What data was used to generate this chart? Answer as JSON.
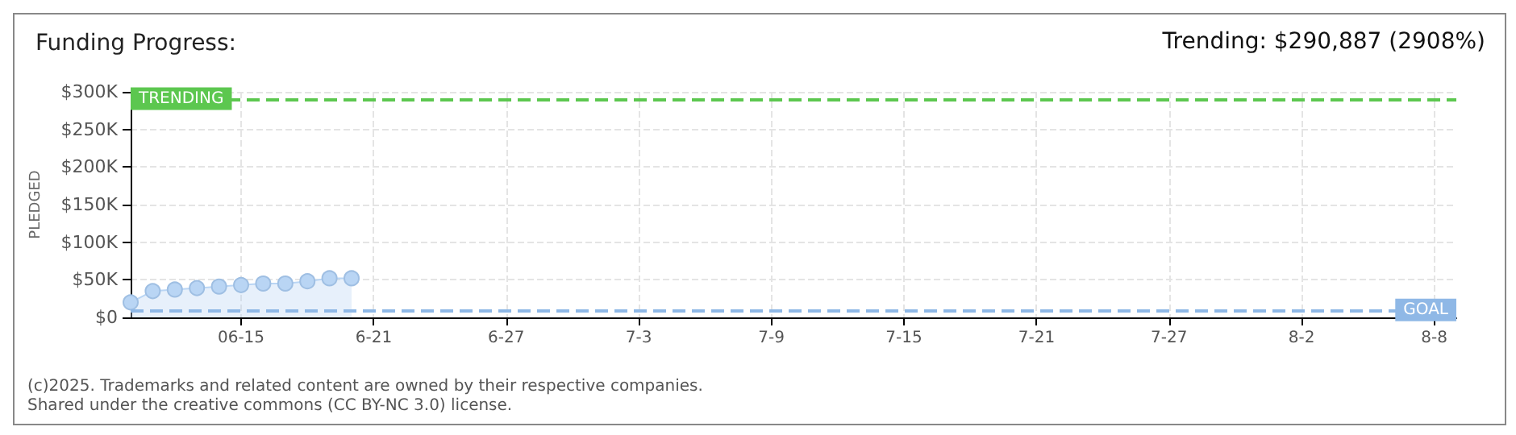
{
  "chart_data": {
    "type": "area",
    "title": "Funding Progress:",
    "ylabel": "PLEDGED",
    "annotations": [
      "Trending: $290,887 (2908%)",
      "(c)2025. Trademarks and related content are owned by their respective companies.",
      "Shared under the creative commons (CC BY-NC 3.0) license."
    ],
    "x": [
      "--06-10",
      "--06-11",
      "--06-12",
      "--06-13",
      "--06-14",
      "--06-15",
      "--06-16",
      "--06-17",
      "--06-18",
      "--06-19",
      "--06-20"
    ],
    "series": [
      {
        "color": "#b9d5f4",
        "values": [
          20000,
          35000,
          37000,
          39000,
          41000,
          43000,
          45000,
          45000,
          48000,
          52000,
          52000
        ]
      }
    ],
    "xlim": [
      "--06-10",
      "--08-09"
    ],
    "xticks": [
      {
        "value": "--06-15",
        "label": "06-15"
      },
      {
        "value": "--06-21",
        "label": "6-21"
      },
      {
        "value": "--06-27",
        "label": "6-27"
      },
      {
        "value": "--07-03",
        "label": "7-3"
      },
      {
        "value": "--07-09",
        "label": "7-9"
      },
      {
        "value": "--07-15",
        "label": "7-15"
      },
      {
        "value": "--07-21",
        "label": "7-21"
      },
      {
        "value": "--07-27",
        "label": "7-27"
      },
      {
        "value": "--08-02",
        "label": "8-2"
      },
      {
        "value": "--08-08",
        "label": "8-8"
      }
    ],
    "ylim": [
      0,
      300000
    ],
    "yticks": [
      {
        "value": 0,
        "label": "$0"
      },
      {
        "value": 50000,
        "label": "$50K"
      },
      {
        "value": 100000,
        "label": "$100K"
      },
      {
        "value": 150000,
        "label": "$150K"
      },
      {
        "value": 200000,
        "label": "$200K"
      },
      {
        "value": 250000,
        "label": "$250K"
      },
      {
        "value": 300000,
        "label": "$300K"
      }
    ],
    "ref_lines": [
      {
        "axis": "y",
        "value": 290887,
        "label": "TRENDING",
        "color": "#5cc74f",
        "line_style": "dashed"
      },
      {
        "axis": "y",
        "value": 10000,
        "label": "GOAL",
        "color": "#8fb8e6",
        "line_style": "dashed"
      }
    ],
    "grid": true,
    "marker": "circle"
  }
}
